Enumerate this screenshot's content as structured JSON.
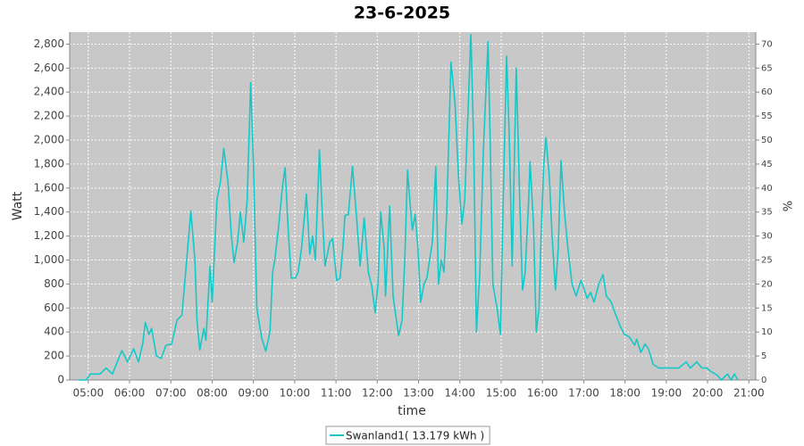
{
  "chart_data": {
    "type": "line",
    "title": "23-6-2025",
    "xlabel": "time",
    "ylabel": "Watt",
    "y2label": "%",
    "x": [
      "04:46",
      "04:57",
      "05:03",
      "05:17",
      "05:26",
      "05:35",
      "05:49",
      "05:57",
      "06:06",
      "06:13",
      "06:19",
      "06:23",
      "06:28",
      "06:32",
      "06:39",
      "06:46",
      "06:53",
      "07:01",
      "07:09",
      "07:16",
      "07:23",
      "07:29",
      "07:35",
      "07:38",
      "07:42",
      "07:48",
      "07:51",
      "07:57",
      "08:00",
      "08:07",
      "08:12",
      "08:17",
      "08:23",
      "08:28",
      "08:32",
      "08:37",
      "08:41",
      "08:46",
      "08:51",
      "08:56",
      "09:00",
      "09:05",
      "09:12",
      "09:18",
      "09:24",
      "09:28",
      "09:31",
      "09:37",
      "09:42",
      "09:46",
      "09:51",
      "09:55",
      "10:01",
      "10:05",
      "10:10",
      "10:17",
      "10:22",
      "10:26",
      "10:30",
      "10:36",
      "10:40",
      "10:44",
      "10:51",
      "10:55",
      "11:01",
      "11:06",
      "11:10",
      "11:13",
      "11:18",
      "11:24",
      "11:30",
      "11:35",
      "11:41",
      "11:47",
      "11:52",
      "11:57",
      "12:01",
      "12:05",
      "12:10",
      "12:12",
      "12:18",
      "12:23",
      "12:31",
      "12:36",
      "12:40",
      "12:44",
      "12:48",
      "12:51",
      "12:55",
      "12:59",
      "13:03",
      "13:08",
      "13:12",
      "13:20",
      "13:25",
      "13:29",
      "13:33",
      "13:37",
      "13:41",
      "13:47",
      "13:53",
      "13:58",
      "14:03",
      "14:07",
      "14:16",
      "14:20",
      "14:24",
      "14:29",
      "14:34",
      "14:41",
      "14:44",
      "14:48",
      "14:54",
      "14:59",
      "15:03",
      "15:08",
      "15:12",
      "15:16",
      "15:22",
      "15:27",
      "15:31",
      "15:35",
      "15:40",
      "15:42",
      "15:47",
      "15:51",
      "15:55",
      "15:58",
      "16:02",
      "16:05",
      "16:10",
      "16:14",
      "16:19",
      "16:23",
      "16:27",
      "16:32",
      "16:37",
      "16:43",
      "16:49",
      "16:56",
      "17:01",
      "17:05",
      "17:10",
      "17:15",
      "17:22",
      "17:28",
      "17:33",
      "17:40",
      "17:46",
      "17:53",
      "17:59",
      "18:06",
      "18:14",
      "18:17",
      "18:23",
      "18:29",
      "18:34",
      "18:41",
      "18:49",
      "19:00",
      "19:18",
      "19:29",
      "19:35",
      "19:44",
      "19:52",
      "19:59",
      "20:05",
      "20:14",
      "20:20",
      "20:29",
      "20:34",
      "20:39",
      "20:44"
    ],
    "series": [
      {
        "name": "Swanland1( 13.179 kWh )",
        "color": "#14c8c8",
        "values": [
          0,
          0,
          50,
          50,
          100,
          50,
          245,
          150,
          260,
          150,
          300,
          480,
          380,
          430,
          200,
          180,
          290,
          300,
          500,
          540,
          1000,
          1410,
          1000,
          500,
          250,
          430,
          330,
          950,
          650,
          1500,
          1650,
          1930,
          1650,
          1200,
          980,
          1150,
          1400,
          1150,
          1500,
          2480,
          1800,
          600,
          350,
          240,
          400,
          900,
          1000,
          1300,
          1600,
          1770,
          1200,
          850,
          850,
          900,
          1100,
          1550,
          1050,
          1200,
          1000,
          1920,
          1400,
          950,
          1150,
          1180,
          830,
          850,
          1100,
          1370,
          1380,
          1780,
          1350,
          950,
          1350,
          900,
          780,
          560,
          800,
          1400,
          1100,
          700,
          1450,
          700,
          370,
          500,
          1000,
          1750,
          1450,
          1250,
          1380,
          1100,
          650,
          800,
          850,
          1150,
          1780,
          800,
          1000,
          900,
          1400,
          2650,
          2300,
          1700,
          1300,
          1500,
          2880,
          2000,
          400,
          900,
          1900,
          2820,
          2000,
          800,
          600,
          380,
          1500,
          2700,
          2000,
          950,
          2600,
          1500,
          750,
          900,
          1500,
          1820,
          1300,
          400,
          600,
          1200,
          1800,
          2020,
          1700,
          1200,
          750,
          1100,
          1830,
          1400,
          1100,
          800,
          700,
          830,
          750,
          680,
          730,
          650,
          800,
          880,
          700,
          650,
          550,
          450,
          380,
          360,
          290,
          340,
          230,
          300,
          260,
          130,
          100,
          100,
          100,
          150,
          100,
          150,
          100,
          100,
          70,
          40,
          0,
          50,
          0,
          50,
          0
        ]
      }
    ],
    "xlim": [
      "04:33",
      "21:10"
    ],
    "xticks": [
      "05:00",
      "06:00",
      "07:00",
      "08:00",
      "09:00",
      "10:00",
      "11:00",
      "12:00",
      "13:00",
      "14:00",
      "15:00",
      "16:00",
      "17:00",
      "18:00",
      "19:00",
      "20:00",
      "21:00"
    ],
    "ylim": [
      0,
      2900
    ],
    "yticks": [
      0,
      200,
      400,
      600,
      800,
      {
        "value": 1000,
        "label": "1,000"
      },
      {
        "value": 1200,
        "label": "1,200"
      },
      {
        "value": 1400,
        "label": "1,400"
      },
      {
        "value": 1600,
        "label": "1,600"
      },
      {
        "value": 1800,
        "label": "1,800"
      },
      {
        "value": 2000,
        "label": "2,000"
      },
      {
        "value": 2200,
        "label": "2,200"
      },
      {
        "value": 2400,
        "label": "2,400"
      },
      {
        "value": 2600,
        "label": "2,600"
      },
      {
        "value": 2800,
        "label": "2,800"
      }
    ],
    "y2lim": [
      0,
      72.5
    ],
    "y2ticks": [
      0,
      5,
      10,
      15,
      20,
      25,
      30,
      35,
      40,
      45,
      50,
      55,
      60,
      65,
      70
    ],
    "grid": true,
    "legend": "bottom",
    "background": "#c8c8c8"
  }
}
